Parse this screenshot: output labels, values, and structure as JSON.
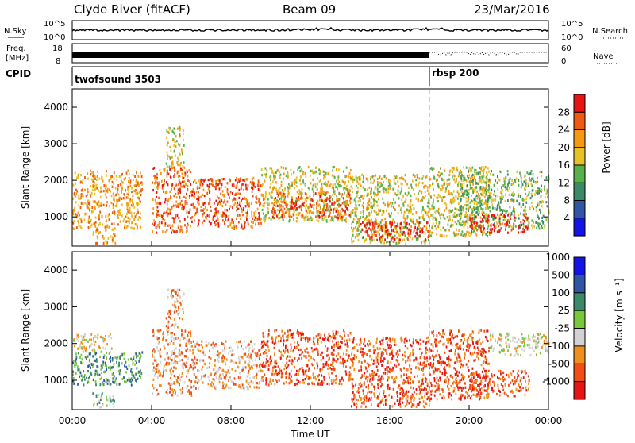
{
  "header": {
    "title": "Clyde River (fitACF)",
    "beam": "Beam 09",
    "date": "23/Mar/2016"
  },
  "sky_panel": {
    "left_label": "N.Sky",
    "right_label": "N.Search",
    "left_ticks": [
      "10^5",
      "10^0"
    ],
    "right_ticks": [
      "10^5",
      "10^0"
    ]
  },
  "freq_panel": {
    "left_label_line1": "Freq.",
    "left_label_line2": "[MHz]",
    "right_label": "Nave",
    "left_ticks": [
      "18",
      "8"
    ],
    "right_ticks": [
      "60",
      "0"
    ]
  },
  "cpid_panel": {
    "label": "CPID",
    "segments": [
      {
        "name": "twofsound 3503",
        "start_hour": 0
      },
      {
        "name": "rbsp 200",
        "start_hour": 18
      }
    ]
  },
  "colors": {
    "power": [
      "#1414e6",
      "#2f55a3",
      "#3a8a6a",
      "#58b04a",
      "#e6c226",
      "#f59a10",
      "#f05a14",
      "#e61414"
    ],
    "velocity": [
      "#e61414",
      "#f04e14",
      "#f0901c",
      "#d2d2d2",
      "#78c83c",
      "#3a8a6a",
      "#2f55a3",
      "#1414e6"
    ]
  },
  "chart_data": [
    {
      "type": "heatmap",
      "ylabel": "Slant Range [km]",
      "ylim": [
        200,
        4500
      ],
      "yticks": [
        "1000",
        "2000",
        "3000",
        "4000"
      ],
      "xlim_hours": [
        0,
        24
      ],
      "colorbar": {
        "label": "Power [dB]",
        "ticks": [
          "4",
          "8",
          "12",
          "16",
          "20",
          "24",
          "28"
        ],
        "range": [
          0,
          32
        ]
      },
      "scatter_bands": [
        {
          "t0": 0.0,
          "t1": 3.5,
          "r0": 700,
          "r1": 2300,
          "level": 5
        },
        {
          "t0": 1.0,
          "t1": 2.2,
          "r0": 300,
          "r1": 700,
          "level": 5
        },
        {
          "t0": 4.0,
          "t1": 6.0,
          "r0": 600,
          "r1": 2400,
          "level": 6
        },
        {
          "t0": 4.7,
          "t1": 5.6,
          "r0": 2400,
          "r1": 3500,
          "level": 4
        },
        {
          "t0": 6.0,
          "t1": 9.5,
          "r0": 700,
          "r1": 2100,
          "level": 6
        },
        {
          "t0": 9.5,
          "t1": 14.0,
          "r0": 900,
          "r1": 2400,
          "level": 4
        },
        {
          "t0": 10.0,
          "t1": 14.0,
          "r0": 1000,
          "r1": 1700,
          "level": 6
        },
        {
          "t0": 14.0,
          "t1": 18.0,
          "r0": 300,
          "r1": 2200,
          "level": 4
        },
        {
          "t0": 14.5,
          "t1": 18.0,
          "r0": 400,
          "r1": 900,
          "level": 7
        },
        {
          "t0": 18.0,
          "t1": 21.0,
          "r0": 500,
          "r1": 2400,
          "level": 4
        },
        {
          "t0": 19.5,
          "t1": 24.0,
          "r0": 700,
          "r1": 2300,
          "level": 3
        },
        {
          "t0": 20.0,
          "t1": 23.0,
          "r0": 600,
          "r1": 1100,
          "level": 7
        }
      ]
    },
    {
      "type": "heatmap",
      "ylabel": "Slant Range [km]",
      "ylim": [
        200,
        4500
      ],
      "yticks": [
        "1000",
        "2000",
        "3000",
        "4000"
      ],
      "xlim_hours": [
        0,
        24
      ],
      "xticks": [
        "00:00",
        "04:00",
        "08:00",
        "12:00",
        "16:00",
        "20:00",
        "00:00"
      ],
      "xlabel": "Time UT",
      "colorbar": {
        "label": "Velocity [m s⁻¹]",
        "ticks": [
          "-1000",
          "-500",
          "-100",
          "-25",
          "25",
          "100",
          "500",
          "1000"
        ],
        "range": [
          -1200,
          1200
        ]
      },
      "scatter_bands": [
        {
          "t0": 0.0,
          "t1": 2.0,
          "r0": 1800,
          "r1": 2300,
          "level": 3
        },
        {
          "t0": 0.0,
          "t1": 3.5,
          "r0": 900,
          "r1": 1800,
          "level": 5
        },
        {
          "t0": 1.0,
          "t1": 2.2,
          "r0": 300,
          "r1": 700,
          "level": 4
        },
        {
          "t0": 4.0,
          "t1": 6.0,
          "r0": 600,
          "r1": 2400,
          "level": 2
        },
        {
          "t0": 4.7,
          "t1": 5.6,
          "r0": 2400,
          "r1": 3500,
          "level": 2
        },
        {
          "t0": 6.0,
          "t1": 9.5,
          "r0": 800,
          "r1": 2100,
          "level": 2
        },
        {
          "t0": 9.5,
          "t1": 14.0,
          "r0": 900,
          "r1": 2400,
          "level": 1
        },
        {
          "t0": 14.0,
          "t1": 18.0,
          "r0": 300,
          "r1": 2200,
          "level": 1
        },
        {
          "t0": 18.0,
          "t1": 21.0,
          "r0": 500,
          "r1": 2400,
          "level": 1
        },
        {
          "t0": 21.0,
          "t1": 24.0,
          "r0": 1700,
          "r1": 2300,
          "level": 3
        },
        {
          "t0": 20.0,
          "t1": 23.0,
          "r0": 600,
          "r1": 1300,
          "level": 1
        }
      ]
    }
  ]
}
